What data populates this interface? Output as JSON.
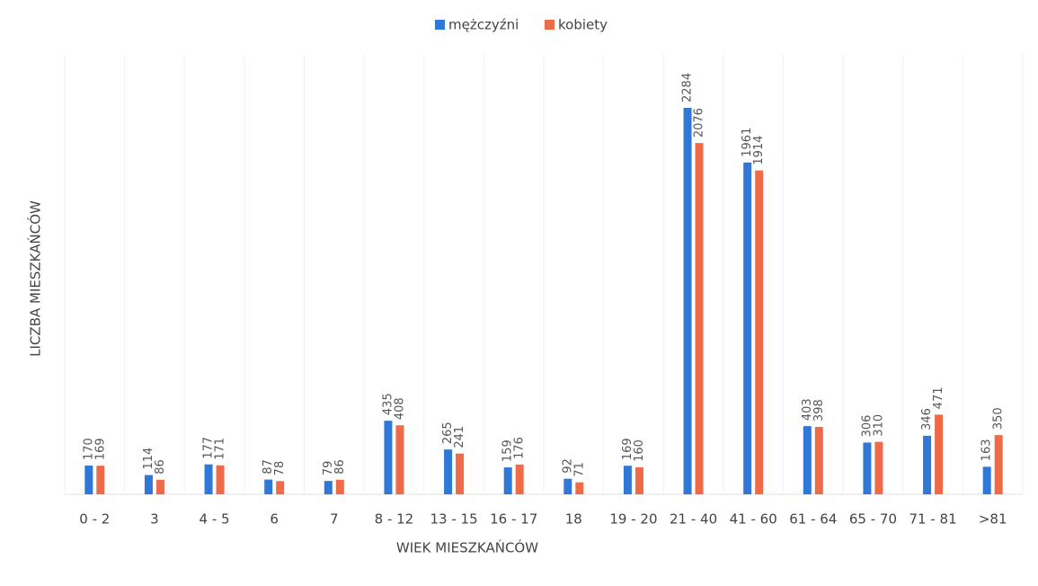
{
  "chart_data": {
    "type": "bar",
    "x_label": "WIEK MIESZKAŃCÓW",
    "y_label": "LICZBA MIESZKAŃCÓW",
    "categories": [
      "0 - 2",
      "3",
      "4 - 5",
      "6",
      "7",
      "8 - 12",
      "13 - 15",
      "16 - 17",
      "18",
      "19 - 20",
      "21 - 40",
      "41 - 60",
      "61 - 64",
      "65 - 70",
      "71 - 81",
      ">81"
    ],
    "series": [
      {
        "name": "mężczyźni",
        "color": "#2f78d8",
        "values": [
          170,
          114,
          177,
          87,
          79,
          435,
          265,
          159,
          92,
          169,
          2284,
          1961,
          403,
          306,
          346,
          163
        ]
      },
      {
        "name": "kobiety",
        "color": "#ef6b48",
        "values": [
          169,
          86,
          171,
          78,
          86,
          408,
          241,
          176,
          71,
          160,
          2076,
          1914,
          398,
          310,
          471,
          350
        ]
      }
    ],
    "legend": "top"
  }
}
